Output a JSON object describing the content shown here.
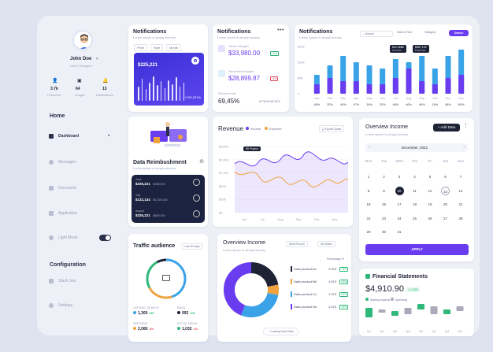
{
  "profile": {
    "name": "John Doe",
    "role": "UI/UX Designer",
    "stats": [
      {
        "value": "3.7k",
        "label": "Followers"
      },
      {
        "value": "64",
        "label": "Images"
      },
      {
        "value": "13",
        "label": "Notifications"
      }
    ]
  },
  "sidebar": {
    "home_section": "Home",
    "items": [
      {
        "label": "Dashboard",
        "icon": "home-icon"
      },
      {
        "label": "Messages",
        "icon": "message-icon"
      },
      {
        "label": "Document",
        "icon": "document-icon"
      },
      {
        "label": "Application",
        "icon": "grid-icon"
      },
      {
        "label": "Light Mode",
        "icon": "sun-icon"
      }
    ],
    "config_section": "Configuration",
    "config_items": [
      {
        "label": "Slack Join",
        "icon": "slack-icon"
      },
      {
        "label": "Settings",
        "icon": "gear-icon"
      }
    ]
  },
  "card1": {
    "title": "Notifications",
    "subtitle": "Lorem Ipsum is simply dummy",
    "filters": [
      "Price",
      "Rate",
      "Month"
    ],
    "value": "$225,221",
    "change": "+225,221%",
    "bar_levels": [
      0.55,
      0.85,
      0.45,
      0.7,
      0.95,
      0.6,
      0.75,
      0.5,
      0.8,
      0.65,
      0.9,
      0.55,
      0.7
    ]
  },
  "card2": {
    "title": "Notifications",
    "subtitle": "Lorem Ipsum is simply dummy",
    "rows": [
      {
        "label": "Taxed charges",
        "value": "$33,980.00",
        "badge": "+8%",
        "badge_color": "#2eb87a"
      },
      {
        "label": "Recorded charges",
        "value": "$28,899.87",
        "badge": "-3%",
        "badge_color": "#e0465a"
      }
    ],
    "recover_label": "Recover rate",
    "recover_value": "69,45%",
    "recover_extra": "6776109.64 RCX"
  },
  "card3": {
    "title": "Notifications",
    "subtitle": "Lorem Ipsum is simply dummy",
    "search_placeholder": "Search",
    "date_filter": "Date & Time",
    "category_filter": "Category",
    "search_button": "Search",
    "tooltip1": {
      "value": "$12,468K",
      "label": "Income"
    },
    "tooltip2": {
      "value": "$987,120",
      "label": "Expense"
    }
  },
  "chart_data": {
    "type": "bar",
    "categories": [
      "Jan",
      "Feb",
      "Mar",
      "Apr",
      "May",
      "Jun",
      "Jul",
      "Aug",
      "Sep",
      "Oct",
      "Nov",
      "Dec"
    ],
    "yticks": [
      "$15k",
      "$10k",
      "$5k",
      "0"
    ],
    "ylim": [
      0,
      15
    ],
    "series": [
      {
        "name": "Income",
        "color": "#3aa3e8",
        "values": [
          6,
          9,
          12,
          10,
          9,
          8,
          11,
          10,
          12,
          8,
          12,
          14
        ]
      },
      {
        "name": "Expense",
        "color": "#6a3cf0",
        "values": [
          3,
          5,
          4,
          4,
          3,
          3,
          5,
          8,
          4,
          3,
          5,
          6
        ]
      }
    ],
    "percent_labels": [
      "46%",
      "32%",
      "49%",
      "47%",
      "16%",
      "32%",
      "46%",
      "46%",
      "46%",
      "16%",
      "46%",
      "83%"
    ]
  },
  "reimbursement": {
    "title": "Data Reimbushment",
    "subtitle": "Lorem Ipsum is simply dummy",
    "rows": [
      {
        "month": "June",
        "value": "$225,221",
        "amount": "/$350,000"
      },
      {
        "month": "July",
        "value": "$122,134",
        "amount": "/$1,500,000"
      },
      {
        "month": "August",
        "value": "$225,221",
        "amount": "/$850,000"
      }
    ]
  },
  "revenue": {
    "title": "Revenue",
    "legend": [
      {
        "name": "Income",
        "color": "#6a3cf0"
      },
      {
        "name": "Expense",
        "color": "#f0a23c"
      }
    ],
    "export_label": "Export Data",
    "tooltip": "80 Project",
    "yticks": [
      "$3,000",
      "$2,000",
      "$1,000",
      "$500",
      "$200",
      "$0"
    ],
    "xticks": [
      "Jun",
      "Jul",
      "Aug",
      "Sep",
      "Oct",
      "Nov"
    ]
  },
  "calendar": {
    "title": "Overview Income",
    "subtitle": "Lorem Ipsum is simply dummy",
    "add_button": "+ Add Data",
    "month": "December, 2022",
    "weekdays": [
      "Mon",
      "Tue",
      "Wed",
      "Thu",
      "Fri",
      "Sat",
      "Sun"
    ],
    "weeks": [
      [
        "1",
        "2",
        "3",
        "4",
        "5",
        "6",
        "7"
      ],
      [
        "8",
        "9",
        "10",
        "11",
        "12",
        "13",
        "14"
      ],
      [
        "15",
        "16",
        "17",
        "18",
        "19",
        "20",
        "21"
      ],
      [
        "22",
        "23",
        "24",
        "25",
        "26",
        "27",
        "28"
      ],
      [
        "29",
        "30",
        "31",
        "",
        "",
        "",
        ""
      ]
    ],
    "apply_button": "APPLY"
  },
  "traffic": {
    "title": "Traffic audience",
    "filter": "Last 30 days",
    "sources": [
      {
        "name": "ORGANIC SEARCH",
        "value": "1,360",
        "badge": "+8%",
        "badge_color": "#2eb87a",
        "color": "#3aa3e8"
      },
      {
        "name": "EMAIL",
        "value": "992",
        "badge": "+2%",
        "badge_color": "#2eb87a",
        "color": "#1e2235"
      },
      {
        "name": "REFERRAL",
        "value": "2,080",
        "badge": "-3%",
        "badge_color": "#e0465a",
        "color": "#f0a23c"
      },
      {
        "name": "SOCIAL MEDIA",
        "value": "1,032",
        "badge": "-2%",
        "badge_color": "#e0465a",
        "color": "#2eb87a"
      }
    ]
  },
  "overview": {
    "title": "Overview Income",
    "subtitle": "Lorem Ipsum is simply dummy",
    "filter1": "Most Recent",
    "filter2": "All Status",
    "column_header": "Percentage %",
    "products": [
      {
        "name": "Data product Aa",
        "value": "1.974",
        "badge": "+8%",
        "color": "#1e2235"
      },
      {
        "name": "Data product Bb",
        "value": "1.974",
        "badge": "+8%",
        "color": "#f0a23c"
      },
      {
        "name": "Data product Cc",
        "value": "1.974",
        "badge": "+8%",
        "color": "#3aa3e8"
      },
      {
        "name": "Data product Dd",
        "value": "1.974",
        "badge": "+8%",
        "color": "#6a3cf0"
      }
    ],
    "loading_label": "Loading Data Table"
  },
  "financial": {
    "title": "Financial Statements",
    "value": "$4,910.90",
    "badge": "+ 1.29%",
    "legend": [
      "Starting balance",
      "Spending"
    ],
    "quarters": [
      "Q1",
      "Q2",
      "Q3",
      "Q4",
      "Q1",
      "Q2",
      "Q3",
      "Q4"
    ]
  }
}
